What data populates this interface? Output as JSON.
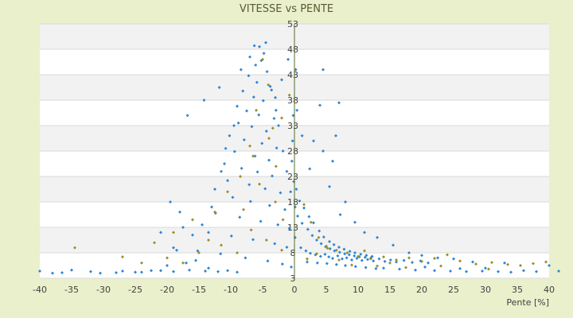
{
  "chart_data": {
    "type": "scatter",
    "title": "VITESSE vs PENTE",
    "xlabel": "Pente [%]",
    "ylabel": "",
    "xlim": [
      -40,
      40
    ],
    "ylim": [
      3,
      53
    ],
    "x_ticks": [
      "-40",
      "-35",
      "-30",
      "-25",
      "-20",
      "-15",
      "-10",
      "-5",
      "0",
      "5",
      "10",
      "15",
      "20",
      "25",
      "30",
      "35",
      "40"
    ],
    "y_ticks": [
      "3",
      "8",
      "13",
      "18",
      "23",
      "28",
      "33",
      "38",
      "43",
      "48",
      "53"
    ],
    "grid": true,
    "legend": "none",
    "series": [
      {
        "color": "#2e86d4",
        "marker": "diamond",
        "points": [
          [
            -5.5,
            48.5
          ],
          [
            -4.8,
            47.2
          ],
          [
            -5.2,
            45.8
          ],
          [
            -6.1,
            44.9
          ],
          [
            -4.3,
            43.6
          ],
          [
            -7.2,
            42.8
          ],
          [
            -5.9,
            41.5
          ],
          [
            -3.8,
            40.7
          ],
          [
            -8.1,
            39.8
          ],
          [
            -6.4,
            38.6
          ],
          [
            -4.9,
            37.9
          ],
          [
            -9.0,
            36.8
          ],
          [
            -7.5,
            35.9
          ],
          [
            -5.6,
            35.1
          ],
          [
            -3.2,
            34.4
          ],
          [
            -8.8,
            33.5
          ],
          [
            -6.7,
            32.8
          ],
          [
            -4.4,
            31.9
          ],
          [
            -10.2,
            31.0
          ],
          [
            -7.9,
            30.2
          ],
          [
            -5.1,
            29.5
          ],
          [
            -2.8,
            28.6
          ],
          [
            -9.4,
            27.9
          ],
          [
            -6.2,
            27.0
          ],
          [
            -4.0,
            26.2
          ],
          [
            -11.0,
            25.5
          ],
          [
            -8.3,
            24.6
          ],
          [
            -5.8,
            23.9
          ],
          [
            -3.5,
            23.1
          ],
          [
            -10.5,
            22.2
          ],
          [
            -7.1,
            21.4
          ],
          [
            -4.6,
            20.6
          ],
          [
            -2.2,
            19.8
          ],
          [
            -9.7,
            18.9
          ],
          [
            -6.9,
            18.1
          ],
          [
            -3.9,
            17.3
          ],
          [
            -1.5,
            16.5
          ],
          [
            -12.4,
            15.8
          ],
          [
            -8.6,
            15.0
          ],
          [
            -5.3,
            14.2
          ],
          [
            -2.6,
            13.5
          ],
          [
            -0.8,
            12.8
          ],
          [
            -13.5,
            12.0
          ],
          [
            -9.9,
            11.3
          ],
          [
            -6.5,
            10.6
          ],
          [
            -3.1,
            9.8
          ],
          [
            -1.2,
            9.1
          ],
          [
            -15.2,
            8.4
          ],
          [
            -11.6,
            7.8
          ],
          [
            -7.7,
            7.0
          ],
          [
            -4.2,
            6.4
          ],
          [
            -1.9,
            5.8
          ],
          [
            -0.5,
            5.2
          ],
          [
            0.5,
            15.2
          ],
          [
            1.2,
            13.8
          ],
          [
            2.1,
            12.6
          ],
          [
            2.8,
            11.4
          ],
          [
            3.5,
            10.5
          ],
          [
            4.2,
            9.8
          ],
          [
            4.9,
            9.2
          ],
          [
            5.6,
            8.8
          ],
          [
            6.3,
            8.4
          ],
          [
            7.1,
            8.1
          ],
          [
            7.9,
            7.8
          ],
          [
            8.6,
            7.6
          ],
          [
            9.4,
            7.4
          ],
          [
            10.2,
            7.2
          ],
          [
            11.1,
            7.1
          ],
          [
            12.0,
            7.0
          ],
          [
            1.0,
            9.0
          ],
          [
            1.8,
            8.4
          ],
          [
            2.5,
            7.9
          ],
          [
            3.3,
            7.6
          ],
          [
            4.1,
            7.3
          ],
          [
            4.8,
            7.7
          ],
          [
            5.4,
            7.2
          ],
          [
            6.0,
            6.9
          ],
          [
            6.8,
            7.4
          ],
          [
            7.5,
            6.8
          ],
          [
            8.2,
            7.0
          ],
          [
            9.0,
            6.6
          ],
          [
            9.8,
            6.9
          ],
          [
            10.6,
            6.5
          ],
          [
            11.5,
            6.7
          ],
          [
            12.4,
            6.4
          ],
          [
            13.3,
            6.8
          ],
          [
            14.2,
            6.3
          ],
          [
            15.1,
            6.6
          ],
          [
            16.0,
            6.2
          ],
          [
            17.2,
            6.5
          ],
          [
            18.5,
            6.1
          ],
          [
            19.8,
            6.4
          ],
          [
            21.0,
            6.0
          ],
          [
            0.3,
            20.5
          ],
          [
            0.8,
            18.2
          ],
          [
            1.5,
            16.8
          ],
          [
            2.3,
            15.1
          ],
          [
            3.0,
            13.9
          ],
          [
            3.9,
            12.3
          ],
          [
            4.6,
            11.1
          ],
          [
            5.5,
            10.2
          ],
          [
            6.2,
            9.6
          ],
          [
            7.0,
            9.1
          ],
          [
            7.8,
            8.7
          ],
          [
            8.7,
            8.3
          ],
          [
            9.5,
            8.0
          ],
          [
            10.4,
            7.7
          ],
          [
            11.3,
            7.5
          ],
          [
            12.2,
            7.3
          ],
          [
            2.0,
            6.2
          ],
          [
            3.6,
            6.0
          ],
          [
            5.1,
            5.9
          ],
          [
            6.6,
            5.7
          ],
          [
            8.0,
            5.5
          ],
          [
            9.6,
            5.3
          ],
          [
            11.2,
            5.1
          ],
          [
            12.8,
            4.9
          ],
          [
            4.5,
            28.0
          ],
          [
            5.5,
            21.0
          ],
          [
            7.2,
            15.5
          ],
          [
            6.0,
            26.0
          ],
          [
            2.4,
            24.5
          ],
          [
            1.2,
            31.0
          ],
          [
            0.4,
            36.0
          ],
          [
            0.2,
            44.0
          ],
          [
            -1.0,
            46.0
          ],
          [
            -2.0,
            42.0
          ],
          [
            -3.0,
            38.5
          ],
          [
            -2.5,
            33.0
          ],
          [
            -1.8,
            28.0
          ],
          [
            -1.2,
            24.0
          ],
          [
            -0.6,
            20.0
          ],
          [
            -17.0,
            6.0
          ],
          [
            -18.5,
            8.5
          ],
          [
            -20.0,
            5.5
          ],
          [
            -22.5,
            4.5
          ],
          [
            -25.0,
            4.2
          ],
          [
            -28.0,
            4.1
          ],
          [
            -30.5,
            4.0
          ],
          [
            -32.0,
            4.3
          ],
          [
            -35.0,
            4.6
          ],
          [
            -38.0,
            4.0
          ],
          [
            -40.0,
            4.4
          ],
          [
            -36.5,
            4.1
          ],
          [
            -27.0,
            4.4
          ],
          [
            -24.0,
            4.2
          ],
          [
            -21.0,
            4.5
          ],
          [
            -19.0,
            4.3
          ],
          [
            -16.5,
            4.6
          ],
          [
            -14.0,
            4.4
          ],
          [
            -12.0,
            4.3
          ],
          [
            -10.5,
            4.5
          ],
          [
            -9.0,
            4.2
          ],
          [
            -16.0,
            11.5
          ],
          [
            -14.5,
            13.5
          ],
          [
            -13.0,
            17.0
          ],
          [
            -12.5,
            20.5
          ],
          [
            -11.5,
            24.0
          ],
          [
            -10.8,
            28.5
          ],
          [
            -9.5,
            33.0
          ],
          [
            -14.2,
            38.0
          ],
          [
            -11.8,
            40.5
          ],
          [
            -16.8,
            35.0
          ],
          [
            -8.4,
            44.0
          ],
          [
            -7.0,
            46.5
          ],
          [
            -6.3,
            48.7
          ],
          [
            -4.5,
            49.3
          ],
          [
            -19.5,
            18.0
          ],
          [
            -18.0,
            16.0
          ],
          [
            -17.5,
            13.0
          ],
          [
            -21.0,
            12.0
          ],
          [
            -19.0,
            9.0
          ],
          [
            -15.5,
            6.5
          ],
          [
            -13.5,
            5.0
          ],
          [
            14.0,
            5.0
          ],
          [
            16.5,
            4.8
          ],
          [
            19.0,
            4.6
          ],
          [
            22.0,
            4.5
          ],
          [
            24.5,
            4.4
          ],
          [
            27.0,
            4.3
          ],
          [
            29.5,
            4.4
          ],
          [
            32.0,
            4.3
          ],
          [
            34.0,
            4.2
          ],
          [
            36.0,
            4.5
          ],
          [
            38.0,
            4.3
          ],
          [
            40.0,
            5.5
          ],
          [
            41.5,
            4.4
          ],
          [
            30.0,
            5.0
          ],
          [
            26.0,
            4.9
          ],
          [
            20.5,
            5.2
          ],
          [
            13.0,
            11.0
          ],
          [
            15.5,
            9.5
          ],
          [
            18.0,
            8.0
          ],
          [
            20.0,
            7.5
          ],
          [
            22.5,
            7.0
          ],
          [
            25.0,
            6.8
          ],
          [
            28.0,
            6.2
          ],
          [
            33.0,
            6.0
          ],
          [
            4.5,
            44.0
          ],
          [
            7.0,
            37.5
          ],
          [
            4.0,
            37.0
          ],
          [
            6.5,
            31.0
          ],
          [
            3.0,
            30.0
          ],
          [
            8.0,
            18.0
          ],
          [
            9.5,
            14.0
          ],
          [
            11.0,
            12.0
          ],
          [
            -3.6,
            40.0
          ],
          [
            -2.9,
            36.0
          ],
          [
            -0.2,
            35.0
          ],
          [
            -0.3,
            30.0
          ],
          [
            -0.4,
            26.0
          ],
          [
            -0.1,
            22.0
          ],
          [
            0.1,
            17.0
          ],
          [
            0.1,
            11.0
          ]
        ]
      },
      {
        "color": "#9a8f2a",
        "marker": "diamond",
        "points": [
          [
            -5.0,
            46.0
          ],
          [
            -4.1,
            41.0
          ],
          [
            -6.0,
            36.0
          ],
          [
            -3.4,
            32.5
          ],
          [
            -7.0,
            29.0
          ],
          [
            -2.9,
            25.0
          ],
          [
            -5.5,
            21.5
          ],
          [
            -3.0,
            18.0
          ],
          [
            -8.0,
            16.5
          ],
          [
            -1.8,
            14.5
          ],
          [
            -6.8,
            12.5
          ],
          [
            -4.4,
            10.5
          ],
          [
            -2.0,
            8.5
          ],
          [
            -9.0,
            8.0
          ],
          [
            -11.5,
            9.5
          ],
          [
            -13.5,
            10.5
          ],
          [
            -15.0,
            8.0
          ],
          [
            -17.5,
            6.0
          ],
          [
            -20.0,
            7.0
          ],
          [
            -24.0,
            6.0
          ],
          [
            -27.0,
            7.2
          ],
          [
            -34.5,
            9.0
          ],
          [
            -22.0,
            10.0
          ],
          [
            -19.0,
            12.0
          ],
          [
            -16.0,
            14.5
          ],
          [
            -12.5,
            16.0
          ],
          [
            -10.5,
            20.0
          ],
          [
            -8.5,
            23.0
          ],
          [
            -6.5,
            27.0
          ],
          [
            -4.0,
            30.5
          ],
          [
            -2.0,
            34.5
          ],
          [
            -0.8,
            39.0
          ],
          [
            1.5,
            17.5
          ],
          [
            2.6,
            14.0
          ],
          [
            3.8,
            11.0
          ],
          [
            5.0,
            9.3
          ],
          [
            6.6,
            8.5
          ],
          [
            8.3,
            8.0
          ],
          [
            10.0,
            7.3
          ],
          [
            12.0,
            6.8
          ],
          [
            14.0,
            7.2
          ],
          [
            16.0,
            6.6
          ],
          [
            18.0,
            7.0
          ],
          [
            20.0,
            6.3
          ],
          [
            22.0,
            6.9
          ],
          [
            24.0,
            7.6
          ],
          [
            26.0,
            6.4
          ],
          [
            28.5,
            5.8
          ],
          [
            31.0,
            6.1
          ],
          [
            33.5,
            5.7
          ],
          [
            35.5,
            5.5
          ],
          [
            37.5,
            5.9
          ],
          [
            39.5,
            6.2
          ],
          [
            30.5,
            4.8
          ],
          [
            23.0,
            5.4
          ],
          [
            17.5,
            5.1
          ],
          [
            2.0,
            6.8
          ],
          [
            3.5,
            7.8
          ],
          [
            5.2,
            8.9
          ],
          [
            7.0,
            6.6
          ],
          [
            9.0,
            5.6
          ],
          [
            11.0,
            8.4
          ],
          [
            13.0,
            5.4
          ],
          [
            15.0,
            6.0
          ]
        ]
      }
    ]
  }
}
